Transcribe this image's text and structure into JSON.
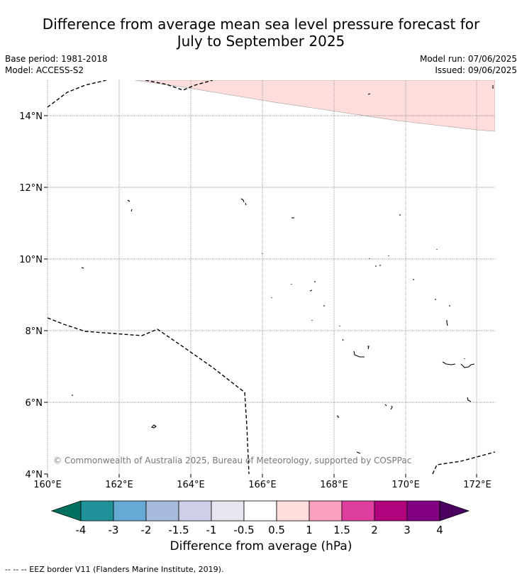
{
  "title_line1": "Difference from average mean sea level pressure forecast for",
  "title_line2": "July to September 2025",
  "base_period": "Base period: 1981-2018",
  "model": "Model: ACCESS-S2",
  "model_run": "Model run: 07/06/2025",
  "issued": "Issued: 09/06/2025",
  "copyright": "© Commonwealth of Australia 2025, Bureau of Meteorology, supported by COSPPac",
  "lat_labels": [
    "14°N",
    "12°N",
    "10°N",
    "8°N",
    "6°N",
    "4°N"
  ],
  "lon_labels": [
    "160°E",
    "162°E",
    "164°E",
    "166°E",
    "168°E",
    "170°E",
    "172°E"
  ],
  "colorbar": {
    "title": "Difference from average (hPa)",
    "ticks": [
      "-4",
      "-3",
      "-2",
      "-1.5",
      "-1",
      "-0.5",
      "0.5",
      "1",
      "1.5",
      "2",
      "3",
      "4"
    ],
    "colors": [
      "#007060",
      "#1f9399",
      "#66a9d4",
      "#a6bbdd",
      "#cdd0e8",
      "#e7e6ee",
      "#ffffff",
      "#ffdddd",
      "#fba0bd",
      "#de3ea0",
      "#b2037f",
      "#800080",
      "#4b0060"
    ]
  },
  "footer": "--  --  -- EEZ border V11 (Flanders Marine Institute, 2019)."
}
